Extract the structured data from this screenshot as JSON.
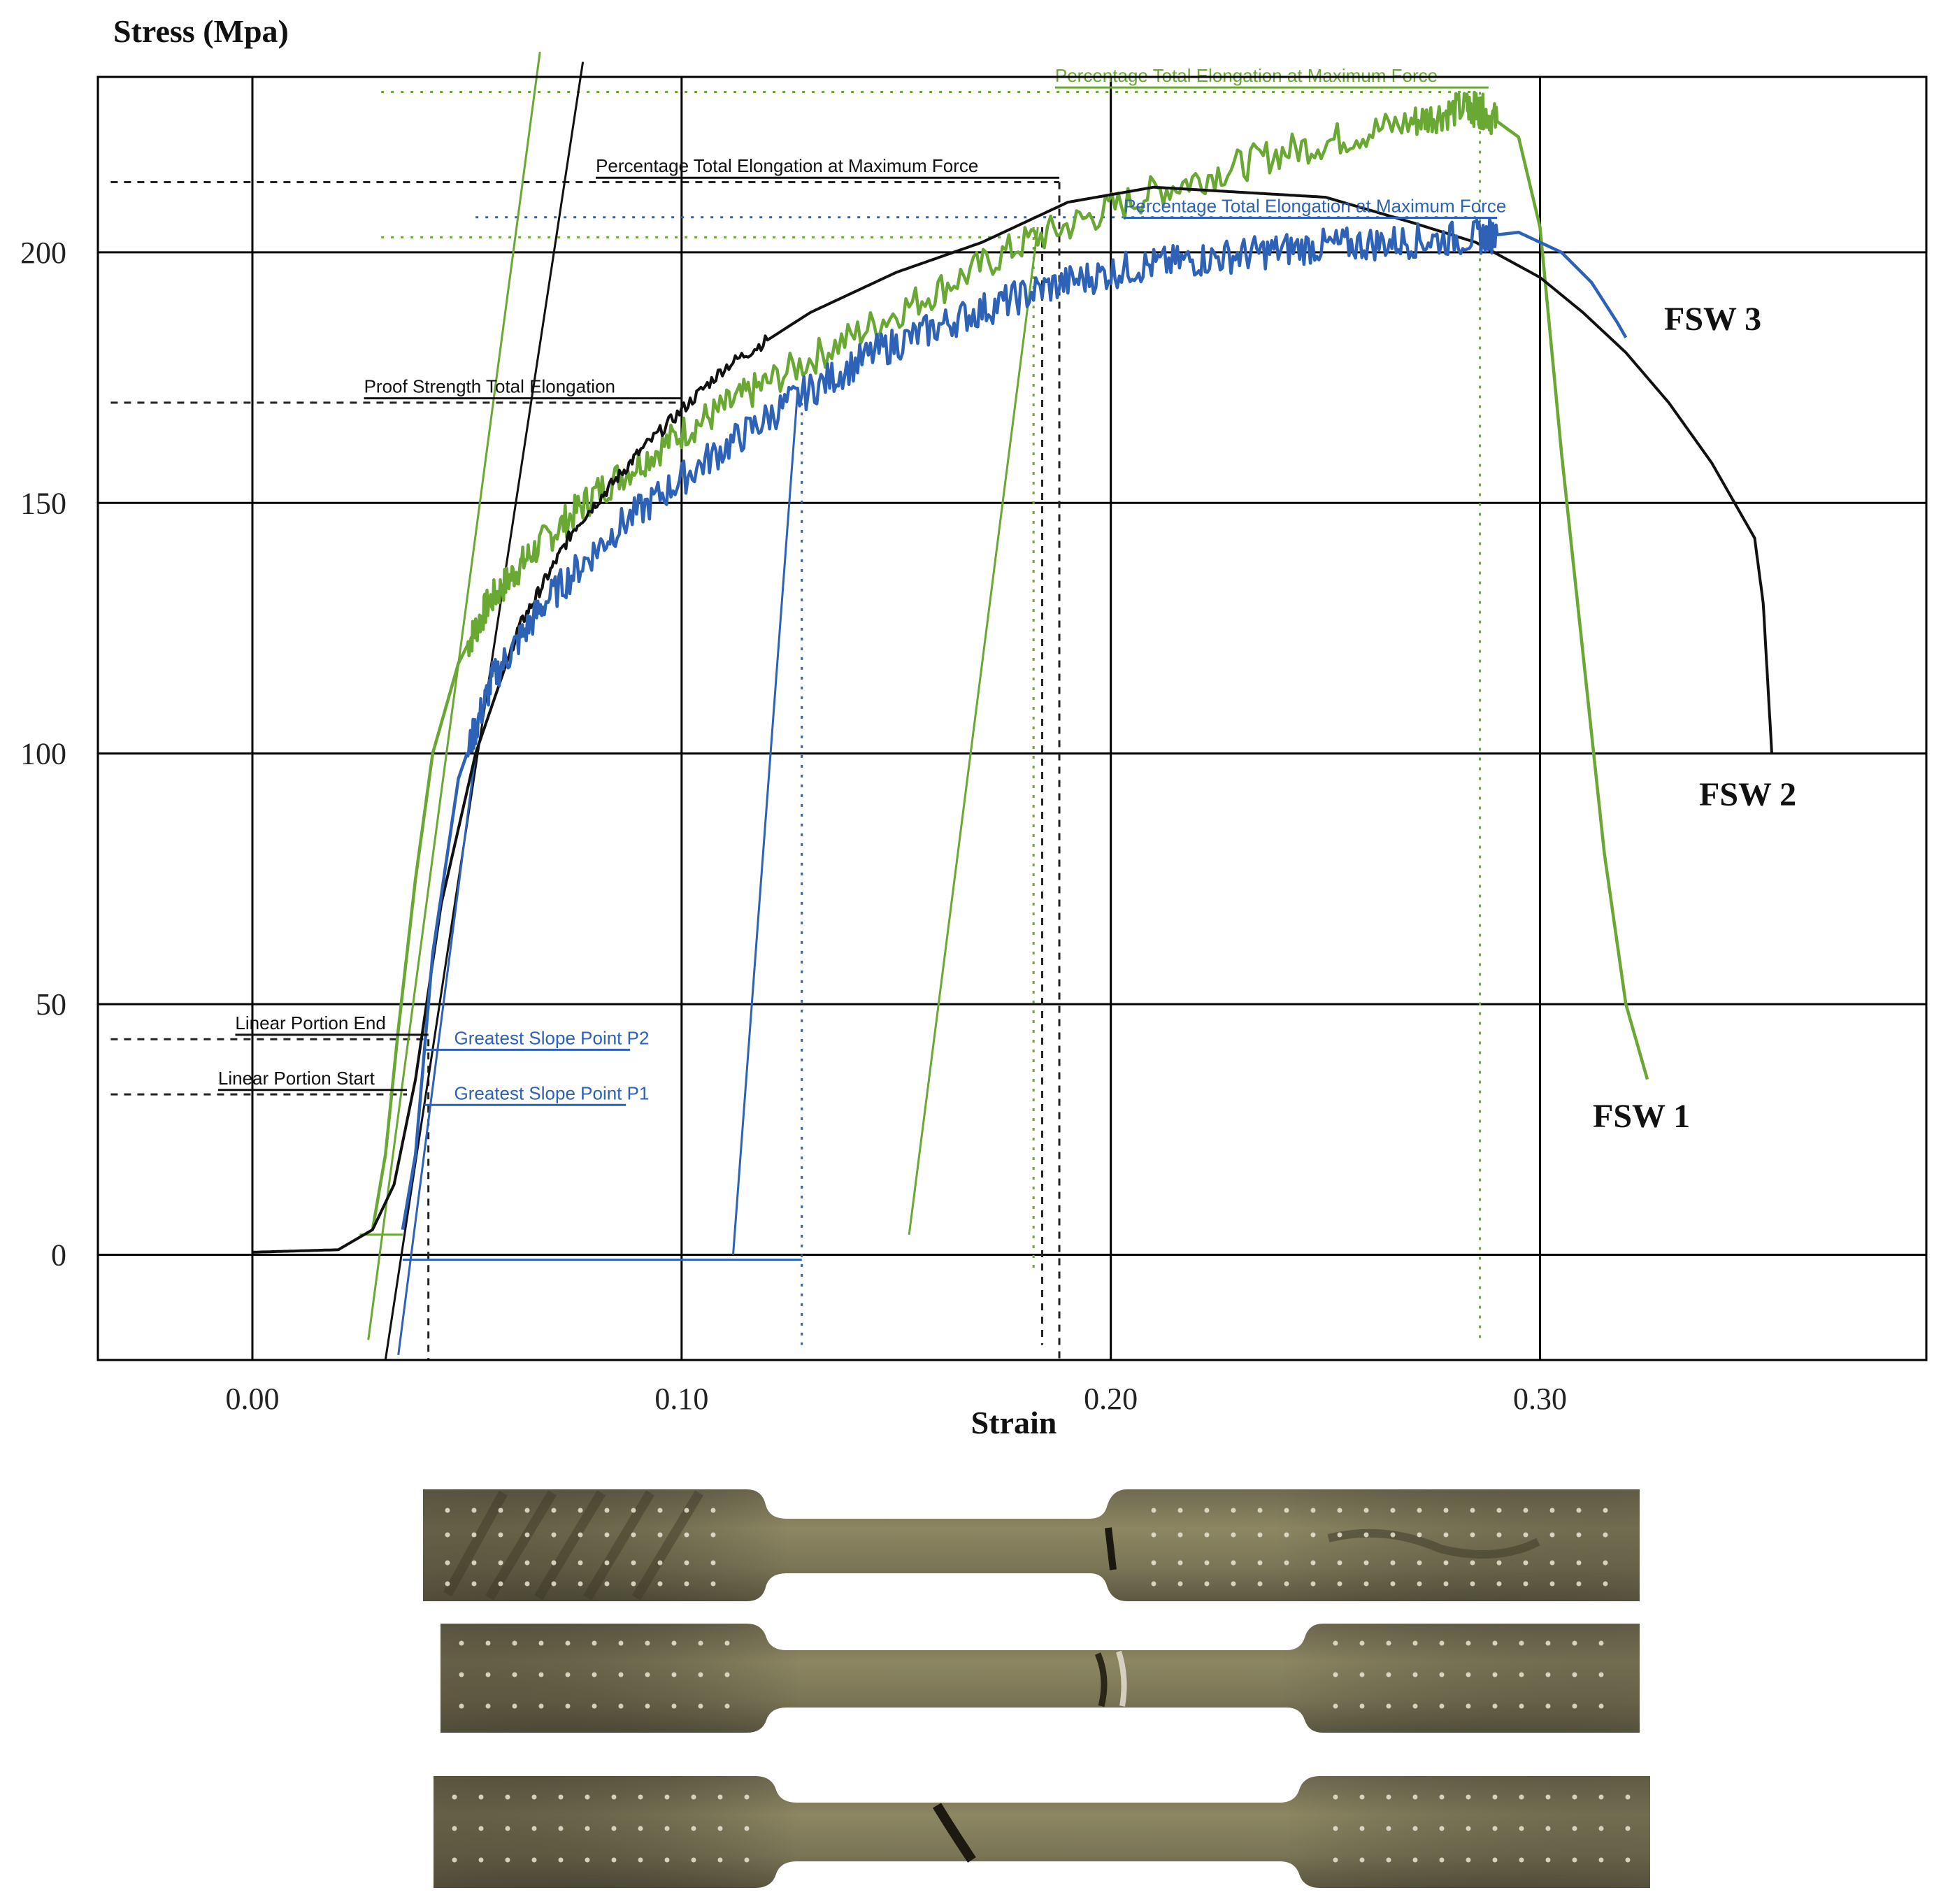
{
  "chart_data": {
    "type": "line",
    "ylabel": "Stress (Mpa)",
    "xlabel": "Strain",
    "xlim": [
      -0.036,
      0.39
    ],
    "ylim": [
      -21,
      235
    ],
    "x_ticks": [
      "0.00",
      "0.10",
      "0.20",
      "0.30"
    ],
    "x_tick_values": [
      0.0,
      0.1,
      0.2,
      0.3
    ],
    "y_ticks": [
      "0",
      "50",
      "100",
      "150",
      "200"
    ],
    "y_tick_values": [
      0,
      50,
      100,
      150,
      200
    ],
    "grid": true,
    "series": [
      {
        "name": "FSW 1",
        "color": "#6aa834",
        "x": [
          0.028,
          0.031,
          0.034,
          0.038,
          0.042,
          0.048,
          0.055,
          0.065,
          0.08,
          0.1,
          0.12,
          0.15,
          0.18,
          0.21,
          0.24,
          0.27,
          0.283,
          0.287,
          0.295,
          0.3,
          0.305,
          0.31,
          0.315,
          0.32,
          0.325
        ],
        "y": [
          5,
          20,
          45,
          75,
          100,
          118,
          130,
          140,
          152,
          164,
          174,
          188,
          202,
          212,
          220,
          226,
          229,
          228,
          223,
          205,
          160,
          120,
          80,
          50,
          35
        ]
      },
      {
        "name": "FSW 2",
        "color": "#111111",
        "x": [
          0.0,
          0.02,
          0.028,
          0.033,
          0.038,
          0.044,
          0.052,
          0.062,
          0.075,
          0.09,
          0.11,
          0.13,
          0.15,
          0.17,
          0.19,
          0.21,
          0.23,
          0.25,
          0.27,
          0.285,
          0.3,
          0.31,
          0.32,
          0.33,
          0.34,
          0.35,
          0.352,
          0.354
        ],
        "y": [
          0.5,
          1,
          5,
          14,
          35,
          70,
          100,
          125,
          145,
          160,
          177,
          188,
          196,
          202,
          210,
          213,
          212,
          211,
          206,
          202,
          195,
          188,
          180,
          170,
          158,
          143,
          130,
          100
        ]
      },
      {
        "name": "FSW 3",
        "color": "#2e62b6",
        "x": [
          0.035,
          0.038,
          0.042,
          0.048,
          0.056,
          0.068,
          0.085,
          0.105,
          0.125,
          0.145,
          0.165,
          0.185,
          0.205,
          0.225,
          0.245,
          0.265,
          0.285,
          0.295,
          0.305,
          0.312,
          0.318,
          0.32
        ],
        "y": [
          5,
          20,
          60,
          95,
          115,
          130,
          145,
          158,
          170,
          180,
          187,
          193,
          197,
          199,
          201,
          202,
          203,
          204,
          200,
          194,
          186,
          183
        ]
      }
    ],
    "annotations": [
      "Percentage Total Elongation at Maximum Force",
      "Proof Strength Total Elongation",
      "Linear Portion End",
      "Linear Portion Start",
      "Greatest Slope Point P2",
      "Greatest Slope Point P1",
      "Percentage Total Elongation at Maximum Force",
      "Percentage Total Elongation at Maximum Force"
    ],
    "series_labels": [
      "FSW 3",
      "FSW 2",
      "FSW 1"
    ]
  },
  "colors": {
    "fsw1": "#6aa834",
    "fsw2": "#111111",
    "fsw3": "#2e62b6",
    "frame": "#000000"
  },
  "photo": {
    "specimens": [
      "specimen-1",
      "specimen-2",
      "specimen-3"
    ]
  }
}
